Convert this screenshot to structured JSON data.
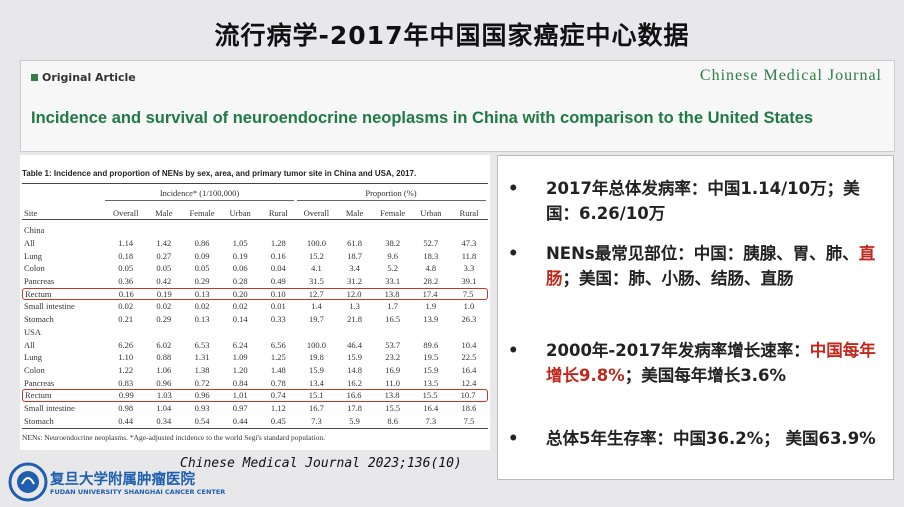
{
  "title": "流行病学-2017年中国国家癌症中心数据",
  "article": {
    "label": "Original Article",
    "journal": "Chinese Medical Journal",
    "headline": "Incidence and survival of neuroendocrine neoplasms in China with comparison to the United States"
  },
  "table": {
    "caption": "Table 1: Incidence and proportion of NENs by sex, area, and primary tumor site in China and USA, 2017.",
    "group_headers": [
      "Incidence* (1/100,000)",
      "Proportion (%)"
    ],
    "columns": [
      "Site",
      "Overall",
      "Male",
      "Female",
      "Urban",
      "Rural",
      "Overall",
      "Male",
      "Female",
      "Urban",
      "Rural"
    ],
    "sections": [
      {
        "name": "China",
        "rows": [
          {
            "cells": [
              "All",
              "1.14",
              "1.42",
              "0.86",
              "1.05",
              "1.28",
              "100.0",
              "61.8",
              "38.2",
              "52.7",
              "47.3"
            ],
            "highlighted": false
          },
          {
            "cells": [
              "Lung",
              "0.18",
              "0.27",
              "0.09",
              "0.19",
              "0.16",
              "15.2",
              "18.7",
              "9.6",
              "18.3",
              "11.8"
            ],
            "highlighted": false
          },
          {
            "cells": [
              "Colon",
              "0.05",
              "0.05",
              "0.05",
              "0.06",
              "0.04",
              "4.1",
              "3.4",
              "5.2",
              "4.8",
              "3.3"
            ],
            "highlighted": false
          },
          {
            "cells": [
              "Pancreas",
              "0.36",
              "0.42",
              "0.29",
              "0.28",
              "0.49",
              "31.5",
              "31.2",
              "33.1",
              "28.2",
              "39.1"
            ],
            "highlighted": false
          },
          {
            "cells": [
              "Rectum",
              "0.16",
              "0.19",
              "0.13",
              "0.20",
              "0.10",
              "12.7",
              "12.0",
              "13.8",
              "17.4",
              "7.5"
            ],
            "highlighted": true
          },
          {
            "cells": [
              "Small intestine",
              "0.02",
              "0.02",
              "0.02",
              "0.02",
              "0.01",
              "1.4",
              "1.3",
              "1.7",
              "1.9",
              "1.0"
            ],
            "highlighted": false
          },
          {
            "cells": [
              "Stomach",
              "0.21",
              "0.29",
              "0.13",
              "0.14",
              "0.33",
              "19.7",
              "21.8",
              "16.5",
              "13.9",
              "26.3"
            ],
            "highlighted": false
          }
        ]
      },
      {
        "name": "USA",
        "rows": [
          {
            "cells": [
              "All",
              "6.26",
              "6.02",
              "6.53",
              "6.24",
              "6.56",
              "100.0",
              "46.4",
              "53.7",
              "89.6",
              "10.4"
            ],
            "highlighted": false
          },
          {
            "cells": [
              "Lung",
              "1.10",
              "0.88",
              "1.31",
              "1.09",
              "1.25",
              "19.8",
              "15.9",
              "23.2",
              "19.5",
              "22.5"
            ],
            "highlighted": false
          },
          {
            "cells": [
              "Colon",
              "1.22",
              "1.06",
              "1.38",
              "1.20",
              "1.48",
              "15.9",
              "14.8",
              "16.9",
              "15.9",
              "16.4"
            ],
            "highlighted": false
          },
          {
            "cells": [
              "Pancreas",
              "0.83",
              "0.96",
              "0.72",
              "0.84",
              "0.78",
              "13.4",
              "16.2",
              "11.0",
              "13.5",
              "12.4"
            ],
            "highlighted": false
          },
          {
            "cells": [
              "Rectum",
              "0.99",
              "1.03",
              "0.96",
              "1.01",
              "0.74",
              "15.1",
              "16.6",
              "13.8",
              "15.5",
              "10.7"
            ],
            "highlighted": true
          },
          {
            "cells": [
              "Small intestine",
              "0.98",
              "1.04",
              "0.93",
              "0.97",
              "1.12",
              "16.7",
              "17.8",
              "15.5",
              "16.4",
              "18.6"
            ],
            "highlighted": false
          },
          {
            "cells": [
              "Stomach",
              "0.44",
              "0.34",
              "0.54",
              "0.44",
              "0.45",
              "7.3",
              "5.9",
              "8.6",
              "7.3",
              "7.5"
            ],
            "highlighted": false
          }
        ]
      }
    ],
    "footnote": "NENs: Neuroendocrine neoplasms. *Age-adjusted incidence to the world Segi's standard population."
  },
  "citation": "Chinese Medical Journal 2023;136(10)",
  "logo": {
    "name": "复旦大学附属肿瘤医院",
    "english": "FUDAN UNIVERSITY SHANGHAI CANCER CENTER"
  },
  "bullets": [
    [
      {
        "text": "2017年总体发病率：中国1.14/10万；美国：6.26/10万",
        "red": false
      }
    ],
    [
      {
        "text": "NENs最常见部位：中国：胰腺、胃、肺、",
        "red": false
      },
      {
        "text": "直肠",
        "red": true
      },
      {
        "text": "；美国：肺、小肠、结肠、直肠",
        "red": false
      }
    ],
    [
      {
        "text": "2000年-2017年发病率增长速率：",
        "red": false
      },
      {
        "text": "中国每年增长9.8%",
        "red": true
      },
      {
        "text": "；美国每年增长3.6%",
        "red": false
      }
    ],
    [
      {
        "text": "总体5年生存率：中国36.2%； 美国63.9%",
        "red": false
      }
    ]
  ]
}
